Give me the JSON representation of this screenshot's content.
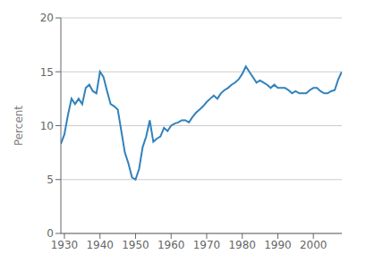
{
  "chart_data": {
    "type": "line",
    "y_label": "Percent",
    "x": [
      1929,
      1930,
      1931,
      1932,
      1933,
      1934,
      1935,
      1936,
      1937,
      1938,
      1939,
      1940,
      1941,
      1942,
      1943,
      1944,
      1945,
      1946,
      1947,
      1948,
      1949,
      1950,
      1951,
      1952,
      1953,
      1954,
      1955,
      1956,
      1957,
      1958,
      1959,
      1960,
      1961,
      1962,
      1963,
      1964,
      1965,
      1966,
      1967,
      1968,
      1969,
      1970,
      1971,
      1972,
      1973,
      1974,
      1975,
      1976,
      1977,
      1978,
      1979,
      1980,
      1981,
      1982,
      1983,
      1984,
      1985,
      1986,
      1987,
      1988,
      1989,
      1990,
      1991,
      1992,
      1993,
      1994,
      1995,
      1996,
      1997,
      1998,
      1999,
      2000,
      2001,
      2002,
      2003,
      2004,
      2005,
      2006,
      2007,
      2008
    ],
    "values": [
      8.3,
      9.2,
      11.0,
      12.5,
      12.0,
      12.5,
      12.0,
      13.5,
      13.8,
      13.2,
      13.0,
      15.0,
      14.5,
      13.2,
      12.0,
      11.8,
      11.5,
      9.5,
      7.5,
      6.5,
      5.2,
      5.0,
      6.0,
      8.0,
      9.0,
      10.5,
      8.5,
      8.8,
      9.0,
      9.8,
      9.5,
      10.0,
      10.2,
      10.3,
      10.5,
      10.5,
      10.3,
      10.8,
      11.2,
      11.5,
      11.8,
      12.2,
      12.5,
      12.8,
      12.5,
      13.0,
      13.3,
      13.5,
      13.8,
      14.0,
      14.3,
      14.8,
      15.5,
      15.0,
      14.5,
      14.0,
      14.2,
      14.0,
      13.8,
      13.5,
      13.8,
      13.5,
      13.5,
      13.5,
      13.3,
      13.0,
      13.2,
      13.0,
      13.0,
      13.0,
      13.3,
      13.5,
      13.5,
      13.2,
      13.0,
      13.0,
      13.2,
      13.3,
      14.3,
      15.0
    ],
    "xlim": [
      1929,
      2008
    ],
    "ylim": [
      0,
      20
    ],
    "xticks": [
      1930,
      1940,
      1950,
      1960,
      1970,
      1980,
      1990,
      2000
    ],
    "yticks": [
      0,
      5,
      10,
      15,
      20
    ],
    "grid": true
  }
}
